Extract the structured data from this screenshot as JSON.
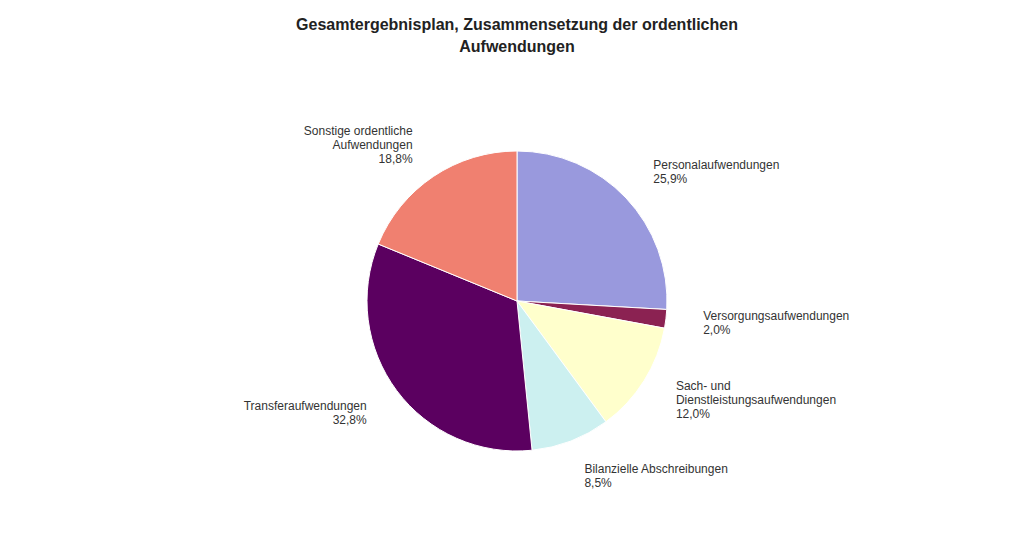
{
  "chart_data": {
    "type": "pie",
    "title": "Gesamtergebnisplan, Zusammensetzung der ordentlichen\nAufwendungen",
    "categories": [
      "Personalaufwendungen\n25,9%",
      "Versorgungsaufwendungen\n2,0%",
      "Sach- und\nDienstleistungsaufwendungen\n12,0%",
      "Bilanzielle Abschreibungen\n8,5%",
      "Transferaufwendungen\n32,8%",
      "Sonstige ordentliche\nAufwendungen\n18,8%"
    ],
    "values": [
      25.9,
      2.0,
      12.0,
      8.5,
      32.8,
      18.8
    ],
    "colors": [
      "#9999DD",
      "#8B2252",
      "#FFFFCC",
      "#CCF0F0",
      "#5B0060",
      "#F08070"
    ]
  }
}
